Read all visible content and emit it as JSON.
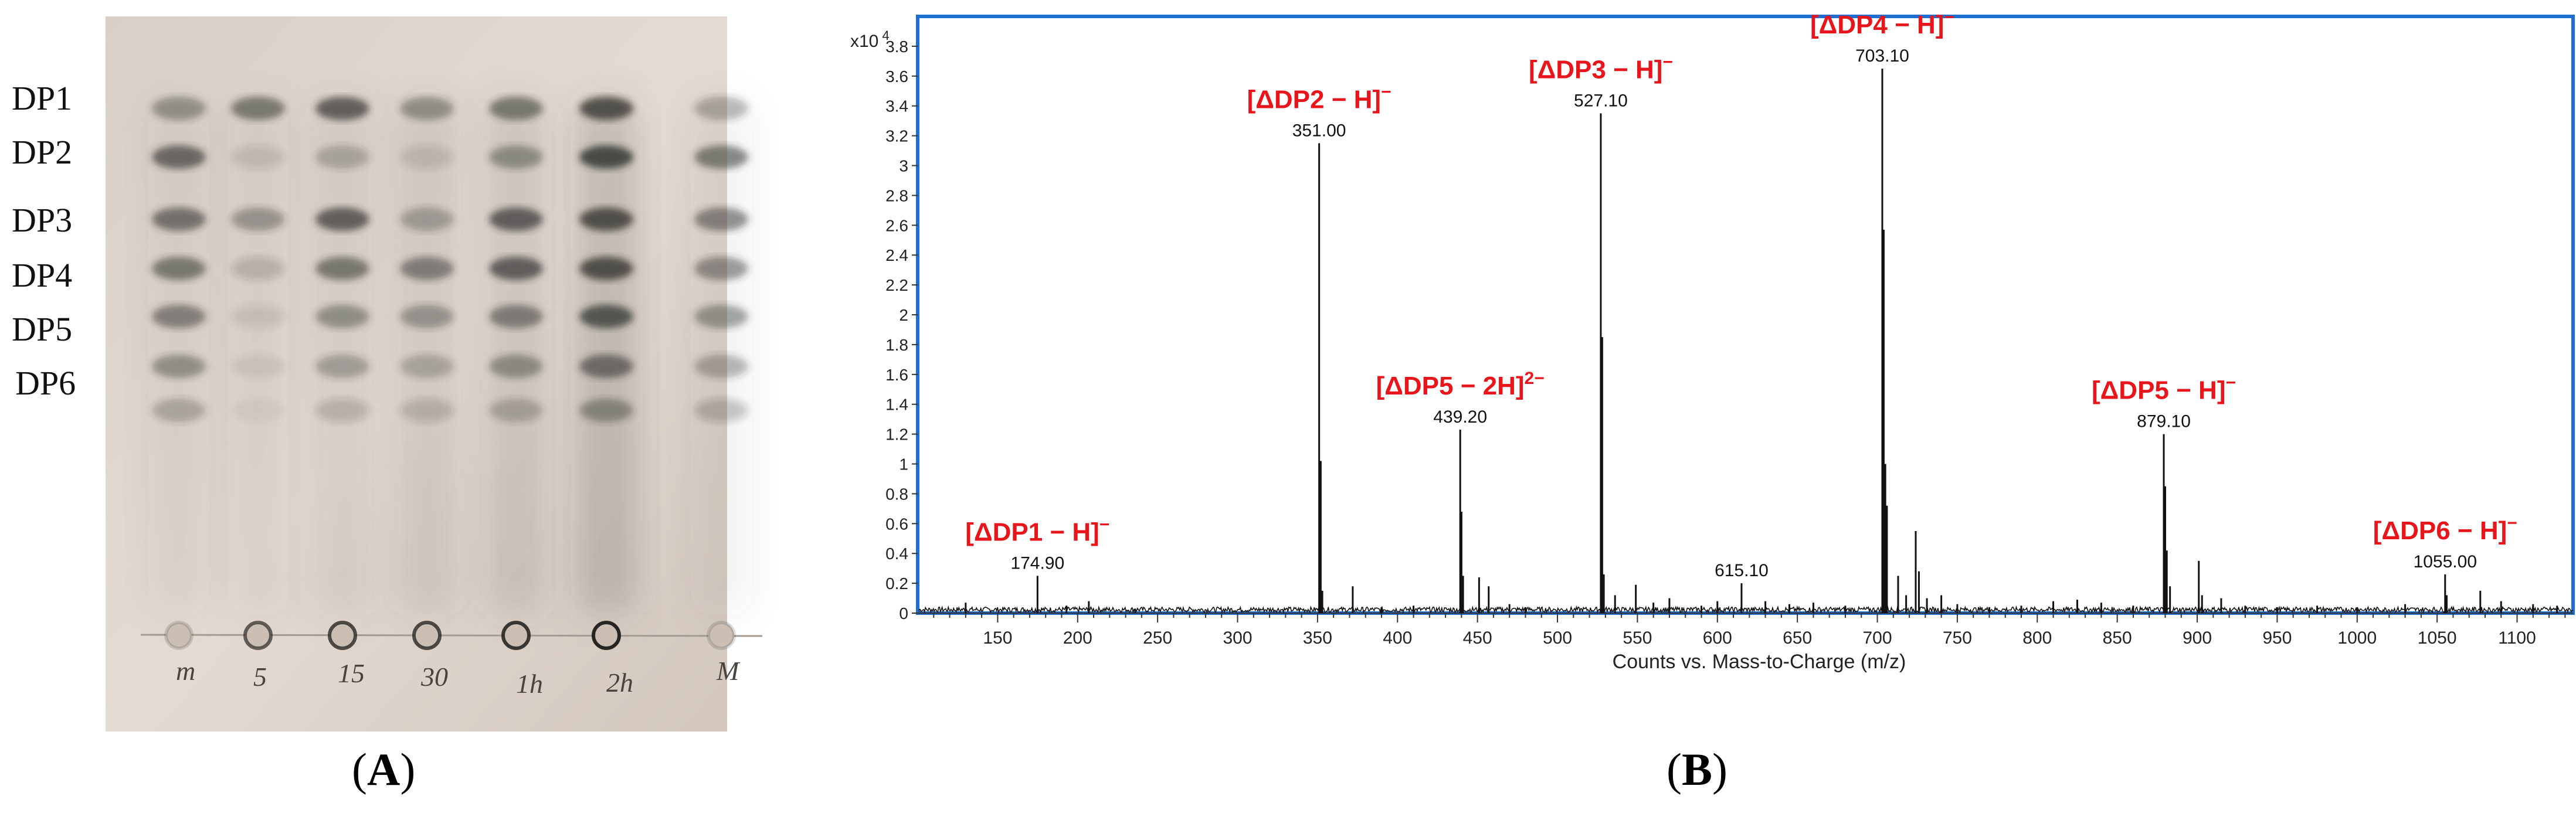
{
  "panel_a": {
    "caption_open": "(",
    "caption_letter": "A",
    "caption_close": ")",
    "dp_labels": [
      "DP1",
      "DP2",
      "DP3",
      "DP4",
      "DP5",
      "DP6"
    ],
    "lane_labels": [
      "m",
      "5",
      "15",
      "30",
      "1h",
      "2h",
      "M"
    ]
  },
  "panel_b": {
    "caption_open": "(",
    "caption_letter": "B",
    "caption_close": ")"
  },
  "chart_data": {
    "type": "line",
    "title": "",
    "xlabel": "Counts vs. Mass-to-Charge (m/z)",
    "ylabel": "",
    "y_multiplier_label": "x10",
    "y_multiplier_exp": "4",
    "xlim": [
      100,
      1135
    ],
    "ylim": [
      0,
      4.0
    ],
    "xticks": [
      150,
      200,
      250,
      300,
      350,
      400,
      450,
      500,
      550,
      600,
      650,
      700,
      750,
      800,
      850,
      900,
      950,
      1000,
      1050,
      1100
    ],
    "yticks": [
      0,
      0.2,
      0.4,
      0.6,
      0.8,
      1,
      1.2,
      1.4,
      1.6,
      1.8,
      2,
      2.2,
      2.4,
      2.6,
      2.8,
      3,
      3.2,
      3.4,
      3.6,
      3.8
    ],
    "peaks": [
      {
        "mz": 130,
        "value": 0.07
      },
      {
        "mz": 174.9,
        "value": 0.25,
        "label": "174.90"
      },
      {
        "mz": 193,
        "value": 0.05
      },
      {
        "mz": 207,
        "value": 0.08
      },
      {
        "mz": 236,
        "value": 0.03
      },
      {
        "mz": 351.0,
        "value": 3.15,
        "label": "351.00"
      },
      {
        "mz": 352,
        "value": 1.02
      },
      {
        "mz": 353,
        "value": 0.15
      },
      {
        "mz": 372,
        "value": 0.18
      },
      {
        "mz": 390,
        "value": 0.04
      },
      {
        "mz": 410,
        "value": 0.05
      },
      {
        "mz": 439.2,
        "value": 1.23,
        "label": "439.20"
      },
      {
        "mz": 440,
        "value": 0.68
      },
      {
        "mz": 441,
        "value": 0.25
      },
      {
        "mz": 451,
        "value": 0.24
      },
      {
        "mz": 457,
        "value": 0.18
      },
      {
        "mz": 470,
        "value": 0.06
      },
      {
        "mz": 480,
        "value": 0.04
      },
      {
        "mz": 527.1,
        "value": 3.35,
        "label": "527.10"
      },
      {
        "mz": 528,
        "value": 1.85
      },
      {
        "mz": 529,
        "value": 0.26
      },
      {
        "mz": 536,
        "value": 0.12
      },
      {
        "mz": 549,
        "value": 0.19
      },
      {
        "mz": 560,
        "value": 0.07
      },
      {
        "mz": 570,
        "value": 0.1
      },
      {
        "mz": 590,
        "value": 0.05
      },
      {
        "mz": 600,
        "value": 0.08
      },
      {
        "mz": 615.1,
        "value": 0.2,
        "label": "615.10"
      },
      {
        "mz": 630,
        "value": 0.08
      },
      {
        "mz": 645,
        "value": 0.06
      },
      {
        "mz": 660,
        "value": 0.07
      },
      {
        "mz": 680,
        "value": 0.05
      },
      {
        "mz": 703.1,
        "value": 3.65,
        "label": "703.10"
      },
      {
        "mz": 704,
        "value": 2.57
      },
      {
        "mz": 705,
        "value": 1.0
      },
      {
        "mz": 706,
        "value": 0.72
      },
      {
        "mz": 713,
        "value": 0.25
      },
      {
        "mz": 718,
        "value": 0.12
      },
      {
        "mz": 724,
        "value": 0.55
      },
      {
        "mz": 726,
        "value": 0.28
      },
      {
        "mz": 731,
        "value": 0.1
      },
      {
        "mz": 740,
        "value": 0.12
      },
      {
        "mz": 750,
        "value": 0.06
      },
      {
        "mz": 770,
        "value": 0.04
      },
      {
        "mz": 790,
        "value": 0.05
      },
      {
        "mz": 810,
        "value": 0.08
      },
      {
        "mz": 825,
        "value": 0.09
      },
      {
        "mz": 840,
        "value": 0.07
      },
      {
        "mz": 860,
        "value": 0.05
      },
      {
        "mz": 879.1,
        "value": 1.2,
        "label": "879.10"
      },
      {
        "mz": 880,
        "value": 0.85
      },
      {
        "mz": 881,
        "value": 0.42
      },
      {
        "mz": 883,
        "value": 0.18
      },
      {
        "mz": 901,
        "value": 0.35
      },
      {
        "mz": 903,
        "value": 0.12
      },
      {
        "mz": 915,
        "value": 0.1
      },
      {
        "mz": 930,
        "value": 0.05
      },
      {
        "mz": 950,
        "value": 0.04
      },
      {
        "mz": 975,
        "value": 0.05
      },
      {
        "mz": 1000,
        "value": 0.04
      },
      {
        "mz": 1030,
        "value": 0.06
      },
      {
        "mz": 1055.0,
        "value": 0.26,
        "label": "1055.00"
      },
      {
        "mz": 1056,
        "value": 0.12
      },
      {
        "mz": 1077,
        "value": 0.15
      },
      {
        "mz": 1090,
        "value": 0.08
      },
      {
        "mz": 1110,
        "value": 0.06
      },
      {
        "mz": 1125,
        "value": 0.05
      }
    ],
    "annotations": [
      {
        "base": "[ΔDP1 − H]",
        "sup": "−",
        "mz": 174.9
      },
      {
        "base": "[ΔDP2 − H]",
        "sup": "−",
        "mz": 351.0
      },
      {
        "base": "[ΔDP3 − H]",
        "sup": "−",
        "mz": 527.1
      },
      {
        "base": "[ΔDP4 − H]",
        "sup": "−",
        "mz": 703.1
      },
      {
        "base": "[ΔDP5 − 2H]",
        "sup": "2−",
        "mz": 439.2
      },
      {
        "base": "[ΔDP5 − H]",
        "sup": "−",
        "mz": 879.1
      },
      {
        "base": "[ΔDP6 − H]",
        "sup": "−",
        "mz": 1055.0
      }
    ],
    "colors": {
      "trace": "#111111",
      "annotation": "#e8151b",
      "frame": "#1f6fd1"
    }
  }
}
